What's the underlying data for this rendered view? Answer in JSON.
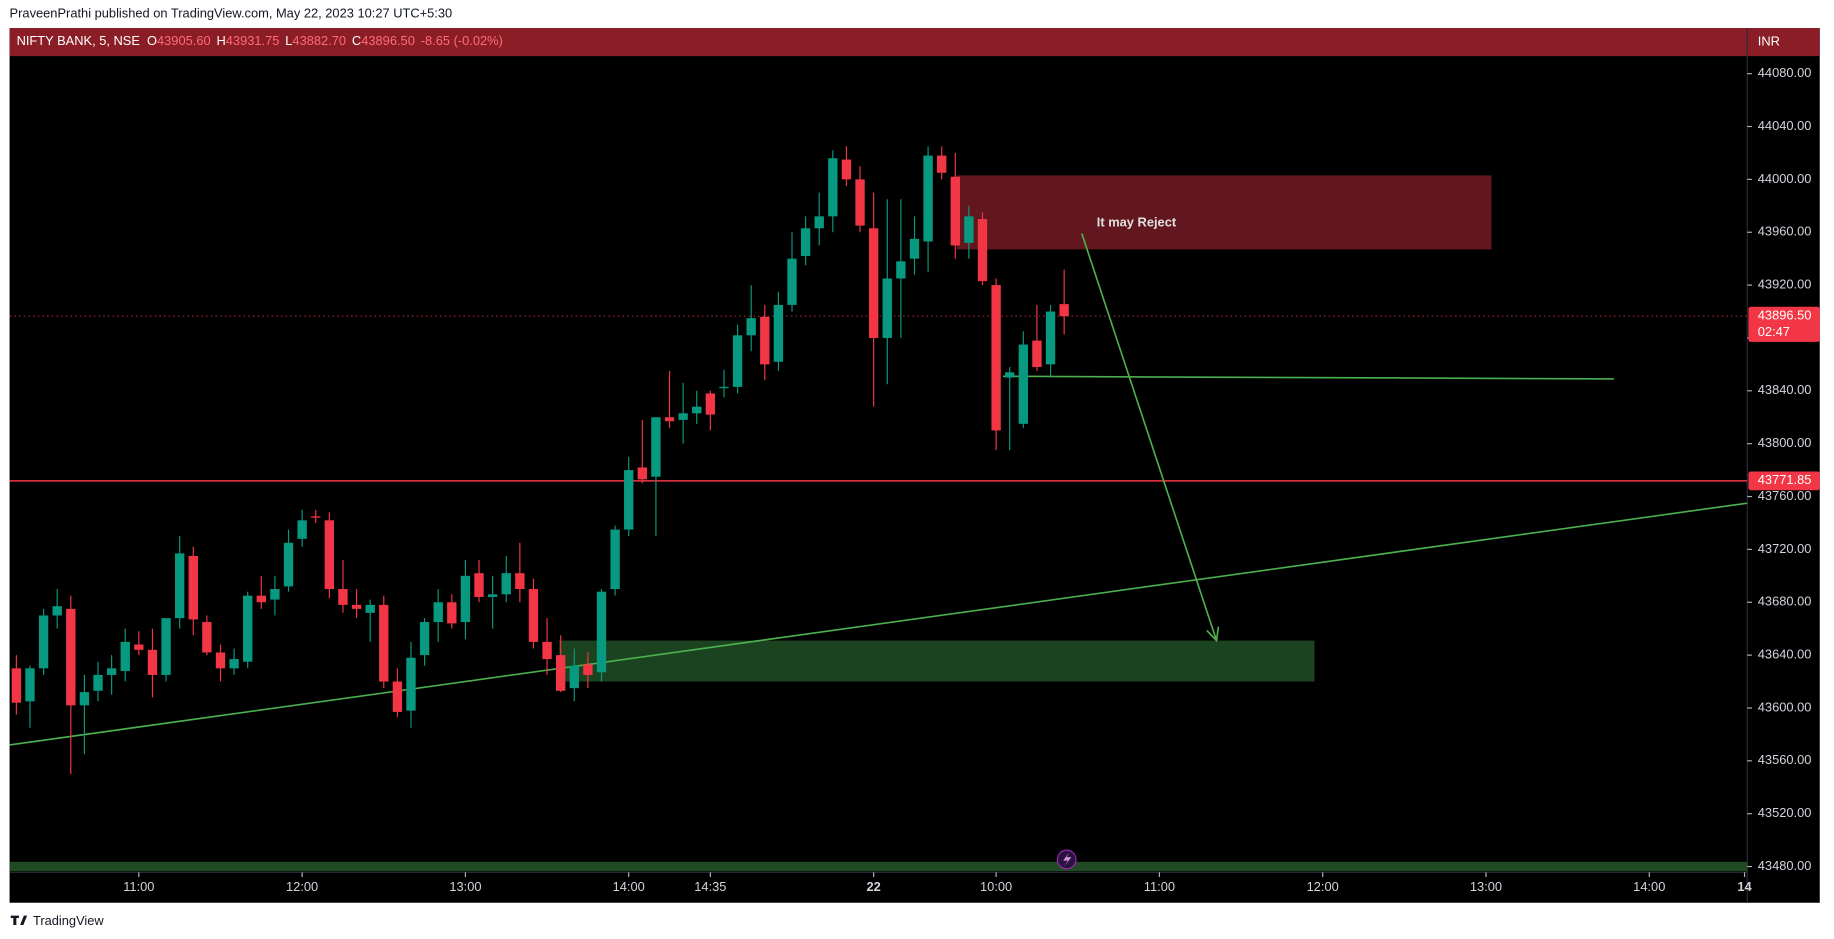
{
  "header": {
    "text": "PraveenPrathi published on TradingView.com, May 22, 2023 10:27 UTC+5:30"
  },
  "chart_data": {
    "type": "candlestick",
    "symbol": "NIFTY BANK, 5, NSE",
    "ohlc_legend": [
      {
        "key": "O",
        "value": "43905.60"
      },
      {
        "key": "H",
        "value": "43931.75"
      },
      {
        "key": "L",
        "value": "43882.70"
      },
      {
        "key": "C",
        "value": "43896.50"
      }
    ],
    "change": "-8.65 (-0.02%)",
    "currency": "INR",
    "open": [
      43630,
      43605,
      43630,
      43670,
      43675,
      43602,
      43613,
      43625,
      43628,
      43648,
      43644,
      43625,
      43668,
      43715,
      43665,
      43642,
      43630,
      43635,
      43685,
      43682,
      43692,
      43728,
      43745,
      43742,
      43690,
      43678,
      43672,
      43678,
      43620,
      43598,
      43640,
      43665,
      43680,
      43665,
      43702,
      43684,
      43686,
      43702,
      43690,
      43650,
      43640,
      43615,
      43633,
      43627,
      43690,
      43735,
      43782,
      43775,
      43820,
      43818,
      43823,
      43838,
      43842,
      43843,
      43882,
      43896,
      43862,
      43905,
      43942,
      43963,
      43972,
      44015,
      44000,
      43963,
      43880,
      43925,
      43940,
      43953,
      44018,
      44002,
      43952,
      43970,
      43920,
      43850,
      43815,
      43878,
      43860,
      43905.6
    ],
    "high": [
      43640,
      43632,
      43675,
      43690,
      43685,
      43625,
      43635,
      43640,
      43660,
      43658,
      43660,
      43665,
      43730,
      43722,
      43670,
      43648,
      43645,
      43688,
      43700,
      43700,
      43735,
      43750,
      43750,
      43748,
      43712,
      43690,
      43682,
      43685,
      43630,
      43650,
      43668,
      43690,
      43686,
      43712,
      43712,
      43700,
      43715,
      43725,
      43698,
      43668,
      43655,
      43645,
      43642,
      43690,
      43738,
      43790,
      43818,
      43820,
      43855,
      43846,
      43840,
      43840,
      43856,
      43890,
      43920,
      43905,
      43915,
      43960,
      43972,
      43990,
      44022,
      44025,
      44010,
      43990,
      43985,
      43985,
      43972,
      44025,
      44025,
      44020,
      43980,
      43975,
      43925,
      43858,
      43885,
      43905,
      43905,
      43931.75
    ],
    "low": [
      43595,
      43585,
      43625,
      43660,
      43550,
      43565,
      43605,
      43610,
      43620,
      43640,
      43608,
      43620,
      43660,
      43655,
      43640,
      43620,
      43625,
      43630,
      43675,
      43670,
      43688,
      43722,
      43740,
      43683,
      43672,
      43668,
      43650,
      43615,
      43593,
      43585,
      43632,
      43650,
      43660,
      43652,
      43680,
      43660,
      43680,
      43680,
      43645,
      43625,
      43612,
      43605,
      43615,
      43620,
      43685,
      43730,
      43770,
      43730,
      43812,
      43800,
      43815,
      43810,
      43835,
      43838,
      43870,
      43848,
      43855,
      43900,
      43935,
      43950,
      43960,
      43995,
      43960,
      43828,
      43845,
      43880,
      43928,
      43930,
      44000,
      43940,
      43940,
      43920,
      43795,
      43795,
      43812,
      43855,
      43850,
      43882.7
    ],
    "close": [
      43604,
      43630,
      43670,
      43677,
      43602,
      43612,
      43625,
      43630,
      43650,
      43644,
      43625,
      43668,
      43717,
      43667,
      43642,
      43630,
      43637,
      43685,
      43680,
      43690,
      43725,
      43742,
      43744,
      43690,
      43678,
      43675,
      43678,
      43620,
      43597,
      43638,
      43665,
      43680,
      43664,
      43700,
      43684,
      43686,
      43702,
      43690,
      43650,
      43637,
      43613,
      43632,
      43625,
      43688,
      43735,
      43780,
      43773,
      43820,
      43817,
      43823,
      43828,
      43822,
      43843,
      43882,
      43895,
      43860,
      43905,
      43940,
      43963,
      43972,
      44016,
      44000,
      43965,
      43880,
      43925,
      43938,
      43955,
      44018,
      44005,
      43950,
      43972,
      43923,
      43810,
      43854,
      43875,
      43858,
      43900,
      43896.5
    ],
    "up_color": "#089981",
    "down_color": "#f23645",
    "xlim": [
      -0.5,
      127.2
    ],
    "xticks": [
      {
        "value": 9,
        "label": "11:00"
      },
      {
        "value": 21,
        "label": "12:00"
      },
      {
        "value": 33,
        "label": "13:00"
      },
      {
        "value": 45,
        "label": "14:00"
      },
      {
        "value": 51,
        "label": "14:35"
      },
      {
        "value": 63,
        "label": "22"
      },
      {
        "value": 72,
        "label": "10:00"
      },
      {
        "value": 84,
        "label": "11:00"
      },
      {
        "value": 96,
        "label": "12:00"
      },
      {
        "value": 108,
        "label": "13:00"
      },
      {
        "value": 120,
        "label": "14:00"
      },
      {
        "value": 127,
        "label": "14"
      }
    ],
    "ylim": [
      43476.5,
      44114.5
    ],
    "yticks": [
      {
        "value": 44080,
        "label": "44080.00"
      },
      {
        "value": 44040,
        "label": "44040.00"
      },
      {
        "value": 44000,
        "label": "44000.00"
      },
      {
        "value": 43960,
        "label": "43960.00"
      },
      {
        "value": 43920,
        "label": "43920.00"
      },
      {
        "value": 43880,
        "label": "43880.00"
      },
      {
        "value": 43840,
        "label": "43840.00"
      },
      {
        "value": 43800,
        "label": "43800.00"
      },
      {
        "value": 43760,
        "label": "43760.00"
      },
      {
        "value": 43720,
        "label": "43720.00"
      },
      {
        "value": 43680,
        "label": "43680.00"
      },
      {
        "value": 43640,
        "label": "43640.00"
      },
      {
        "value": 43600,
        "label": "43600.00"
      },
      {
        "value": 43560,
        "label": "43560.00"
      },
      {
        "value": 43520,
        "label": "43520.00"
      },
      {
        "value": 43480,
        "label": "43480.00"
      }
    ],
    "price_lines": [
      {
        "value": 43896.5,
        "label": "43896.50",
        "countdown": "02:47",
        "style": "dotted",
        "color": "#f23645"
      },
      {
        "value": 43771.85,
        "label": "43771.85",
        "style": "solid",
        "color": "#f23645"
      }
    ],
    "zones": [
      {
        "x": [
          69.1,
          108.4
        ],
        "y": [
          43947,
          44003
        ],
        "color": "#6b1a20"
      },
      {
        "x": [
          39.9,
          95.4
        ],
        "y": [
          43620,
          43651
        ],
        "color": "#1f4a22"
      }
    ],
    "lines": [
      {
        "x": [
          72.5,
          117.4
        ],
        "y": [
          43851,
          43849
        ],
        "color": "#4caf50"
      },
      {
        "x": [
          -0.5,
          127.2
        ],
        "y": [
          43572,
          43755
        ],
        "color": "#4caf50"
      }
    ],
    "arrow": {
      "x": [
        78.3,
        88.2
      ],
      "y": [
        43959,
        43651
      ],
      "color": "#4caf50"
    },
    "annotation": {
      "text": "It may Reject",
      "x": 79.4,
      "y": 43967
    }
  },
  "footer": {
    "brand": "TradingView"
  }
}
